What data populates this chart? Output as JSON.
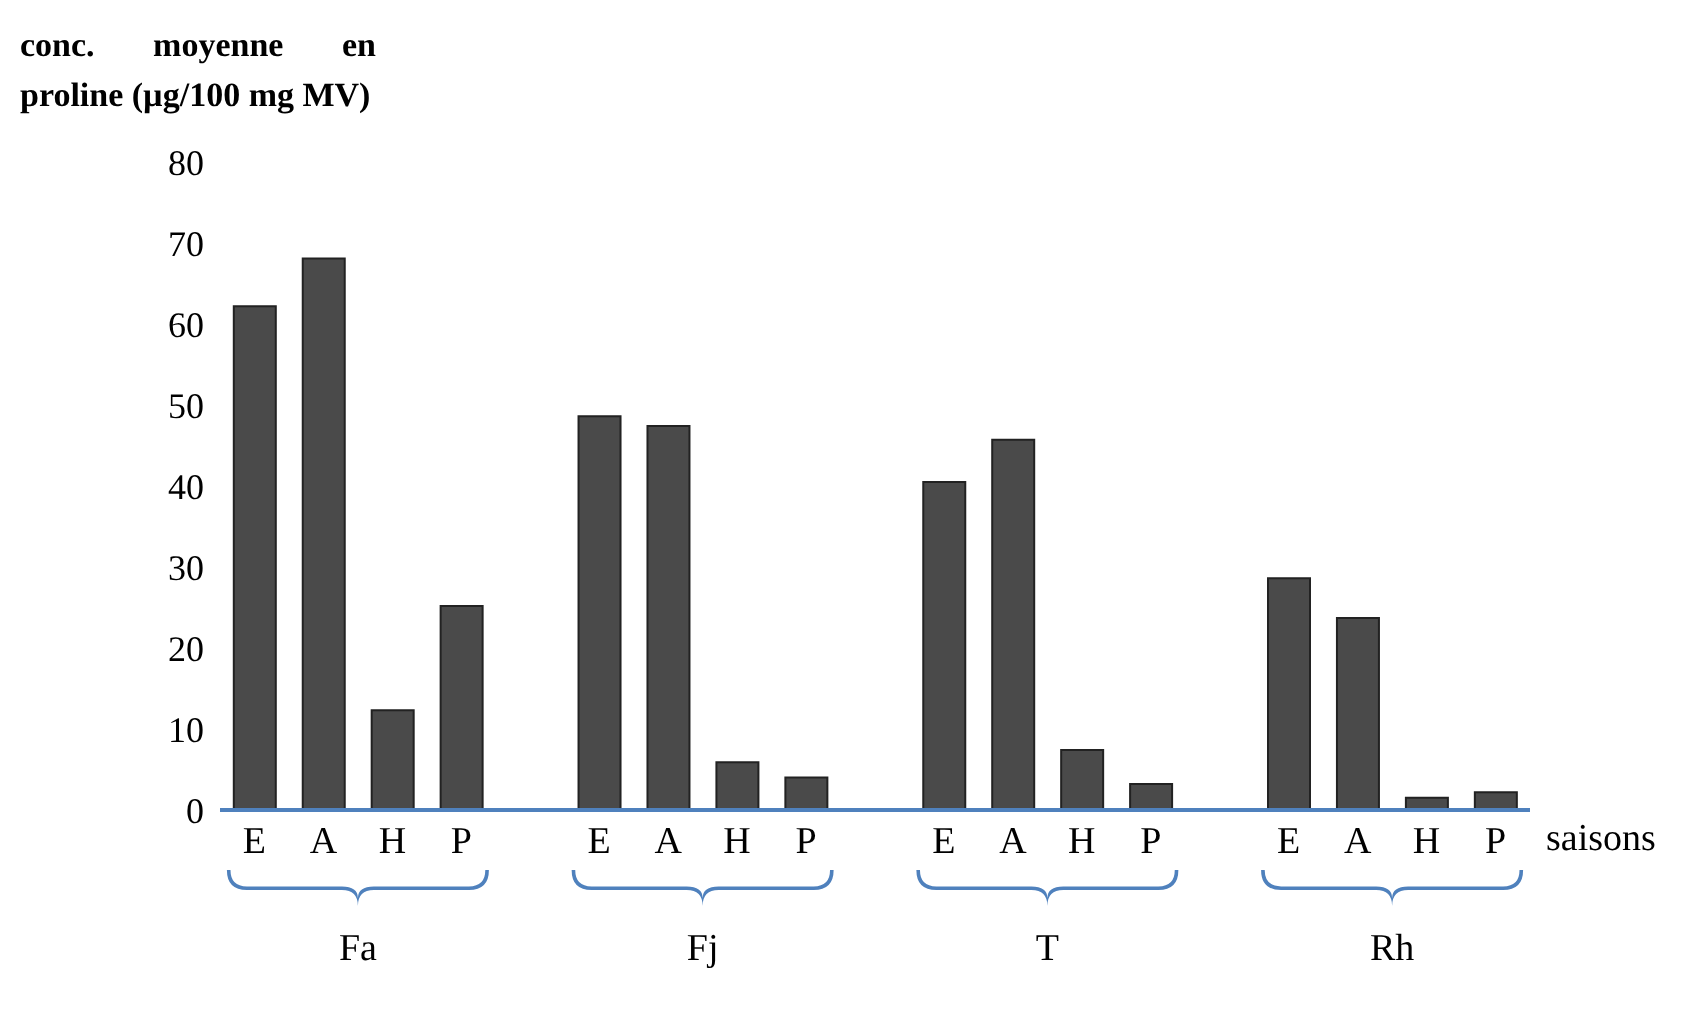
{
  "chart_data": {
    "type": "bar",
    "ylabel": "conc. moyenne en proline (µg/100 mg MV)",
    "xlabel": "saisons",
    "categories": [
      "E",
      "A",
      "H",
      "P",
      null,
      "E",
      "A",
      "H",
      "P",
      null,
      "E",
      "A",
      "H",
      "P",
      null,
      "E",
      "A",
      "H",
      "P"
    ],
    "values": [
      62.2,
      68.1,
      12.3,
      25.2,
      null,
      48.6,
      47.4,
      5.9,
      4.0,
      null,
      40.5,
      45.7,
      7.4,
      3.2,
      null,
      28.6,
      23.7,
      1.5,
      2.2
    ],
    "color": "#4a4a4a",
    "ylim": [
      0,
      80
    ],
    "yticks": [
      0,
      10,
      20,
      30,
      40,
      50,
      60,
      70,
      80
    ],
    "grid": false,
    "legend": false,
    "annotations": [
      "Fa",
      "Fj",
      "T",
      "Rh"
    ]
  }
}
